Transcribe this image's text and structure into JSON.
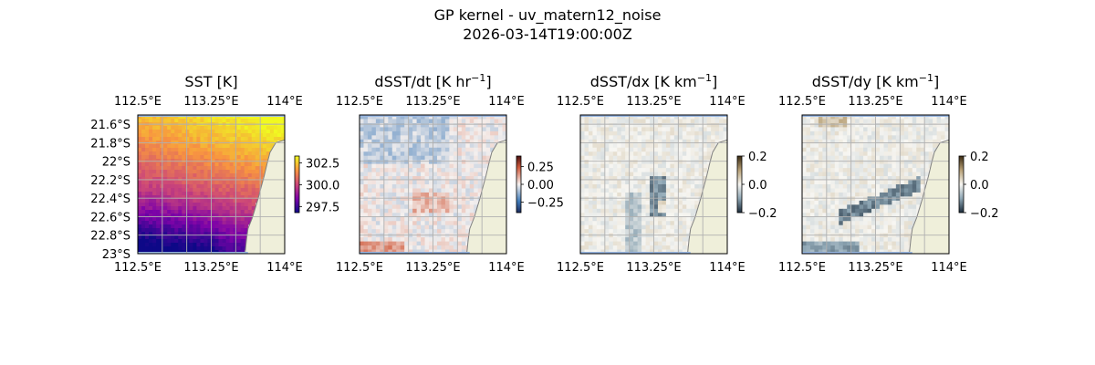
{
  "figure": {
    "title": "GP kernel - uv_matern12_noise",
    "subtitle": "2026-03-14T19:00:00Z"
  },
  "chart_data": [
    {
      "type": "heatmap",
      "title": "SST [K]",
      "x_ticks": [
        "112.5°E",
        "113.25°E",
        "114°E"
      ],
      "y_ticks": [
        "21.6°S",
        "21.8°S",
        "22°S",
        "22.2°S",
        "22.4°S",
        "22.6°S",
        "22.8°S",
        "23°S"
      ],
      "xlim": [
        112.5,
        114.0
      ],
      "ylim": [
        -23.0,
        -21.5
      ],
      "colorbar": {
        "ticks": [
          "302.5",
          "300.0",
          "297.5"
        ],
        "values": [
          302.5,
          300.0,
          297.5
        ],
        "range": [
          296.8,
          303.3
        ]
      },
      "colormap": "plasma",
      "grid": true,
      "has_left_labels": true
    },
    {
      "type": "heatmap",
      "title": "dSST/dt [K hr",
      "title_sup": "−1",
      "title_end": "]",
      "x_ticks": [
        "112.5°E",
        "113.25°E",
        "114°E"
      ],
      "xlim": [
        112.5,
        114.0
      ],
      "ylim": [
        -23.0,
        -21.5
      ],
      "colorbar": {
        "ticks": [
          "0.25",
          "0.00",
          "−0.25"
        ],
        "values": [
          0.25,
          0.0,
          -0.25
        ],
        "range": [
          -0.4,
          0.4
        ]
      },
      "colormap": "balance",
      "grid": true,
      "has_left_labels": false
    },
    {
      "type": "heatmap",
      "title": "dSST/dx [K km",
      "title_sup": "−1",
      "title_end": "]",
      "x_ticks": [
        "112.5°E",
        "113.25°E",
        "114°E"
      ],
      "xlim": [
        112.5,
        114.0
      ],
      "ylim": [
        -23.0,
        -21.5
      ],
      "colorbar": {
        "ticks": [
          "0.2",
          "0.0",
          "−0.2"
        ],
        "values": [
          0.2,
          0.0,
          -0.2
        ],
        "range": [
          -0.2,
          0.2
        ]
      },
      "colormap": "diff",
      "grid": true,
      "has_left_labels": false
    },
    {
      "type": "heatmap",
      "title": "dSST/dy [K km",
      "title_sup": "−1",
      "title_end": "]",
      "x_ticks": [
        "112.5°E",
        "113.25°E",
        "114°E"
      ],
      "xlim": [
        112.5,
        114.0
      ],
      "ylim": [
        -23.0,
        -21.5
      ],
      "colorbar": {
        "ticks": [
          "0.2",
          "0.0",
          "−0.2"
        ],
        "values": [
          0.2,
          0.0,
          -0.2
        ],
        "range": [
          -0.2,
          0.2
        ]
      },
      "colormap": "diff",
      "grid": true,
      "has_left_labels": false
    }
  ],
  "colors": {
    "land": "#efefda",
    "ocean": "#97b6e2",
    "grid": "#b0b0b0",
    "coast": "#808080"
  }
}
